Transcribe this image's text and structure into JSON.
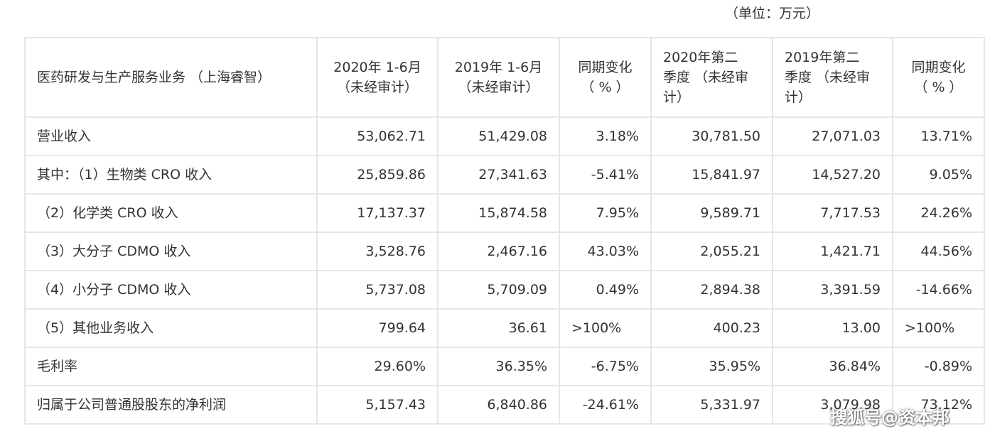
{
  "unit_note": "（单位：万元）",
  "table": {
    "header": {
      "segment": "医药研发与生产服务业务 （上海睿智）",
      "h2020h1": [
        "2020年 1-6月",
        "（未经审计）"
      ],
      "h2019h1": [
        "2019年 1-6月",
        "（未经审计）"
      ],
      "hchange1": [
        "同期变化",
        "（ % ）"
      ],
      "h2020q2": [
        "2020年第二",
        "季度 （未经审",
        "计）"
      ],
      "h2019q2": [
        "2019年第二",
        "季度 （未经审",
        "计）"
      ],
      "hchange2": [
        "同期变化",
        "（ % ）"
      ]
    },
    "rows": [
      {
        "label": "营业收入",
        "v2020h1": "53,062.71",
        "v2019h1": "51,429.08",
        "chg1": "3.18%",
        "v2020q2": "30,781.50",
        "v2019q2": "27,071.03",
        "chg2": "13.71%"
      },
      {
        "label": "其中：（1）生物类 CRO 收入",
        "v2020h1": "25,859.86",
        "v2019h1": "27,341.63",
        "chg1": "-5.41%",
        "v2020q2": "15,841.97",
        "v2019q2": "14,527.20",
        "chg2": "9.05%"
      },
      {
        "label": "（2）化学类 CRO 收入",
        "v2020h1": "17,137.37",
        "v2019h1": "15,874.58",
        "chg1": "7.95%",
        "v2020q2": "9,589.71",
        "v2019q2": "7,717.53",
        "chg2": "24.26%"
      },
      {
        "label": "（3）大分子 CDMO 收入",
        "v2020h1": "3,528.76",
        "v2019h1": "2,467.16",
        "chg1": "43.03%",
        "v2020q2": "2,055.21",
        "v2019q2": "1,421.71",
        "chg2": "44.56%"
      },
      {
        "label": "（4）小分子 CDMO 收入",
        "v2020h1": "5,737.08",
        "v2019h1": "5,709.09",
        "chg1": "0.49%",
        "v2020q2": "2,894.38",
        "v2019q2": "3,391.59",
        "chg2": "-14.66%"
      },
      {
        "label": "（5）其他业务收入",
        "v2020h1": "799.64",
        "v2019h1": "36.61",
        "chg1": ">100%",
        "v2020q2": "400.23",
        "v2019q2": "13.00",
        "chg2": ">100%"
      },
      {
        "label": "毛利率",
        "v2020h1": "29.60%",
        "v2019h1": "36.35%",
        "chg1": "-6.75%",
        "v2020q2": "35.95%",
        "v2019q2": "36.84%",
        "chg2": "-0.89%"
      },
      {
        "label": "归属于公司普通股股东的净利润",
        "v2020h1": "5,157.43",
        "v2019h1": "6,840.86",
        "chg1": "-24.61%",
        "v2020q2": "5,331.97",
        "v2019q2": "3,079.98",
        "chg2": "73.12%"
      }
    ]
  },
  "watermark": "搜狐号@资本邦"
}
